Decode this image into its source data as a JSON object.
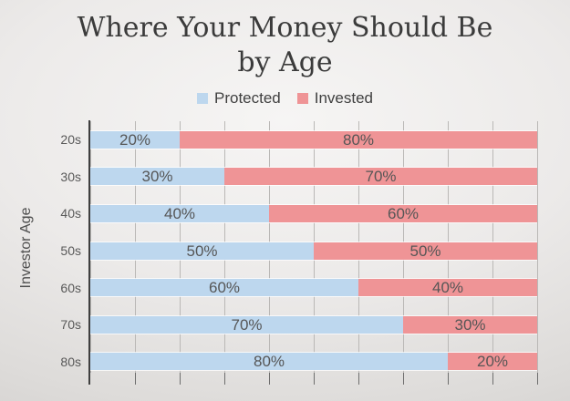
{
  "title": {
    "text": "Where Your Money Should Be by Age",
    "line1": "Where Your Money Should Be",
    "line2": "by Age"
  },
  "legend": [
    {
      "label": "Protected",
      "color": "#bdd7ee"
    },
    {
      "label": "Invested",
      "color": "#ef9496"
    }
  ],
  "y_axis_title": "Investor Age",
  "colors": {
    "protected_blue": "#bdd7ee",
    "invested_red": "#ef9496",
    "axis_line": "#3f3f3f",
    "gridline": "#bab8b6",
    "tick": "#6e6e6e",
    "label_text": "#565656"
  },
  "chart_data": {
    "type": "bar",
    "orientation": "horizontal",
    "stacked": true,
    "title": "Where Your Money Should Be by Age",
    "ylabel": "Investor Age",
    "xlabel": "",
    "categories": [
      "20s",
      "30s",
      "40s",
      "50s",
      "60s",
      "70s",
      "80s"
    ],
    "series": [
      {
        "name": "Protected",
        "color": "#bdd7ee",
        "values": [
          20,
          30,
          40,
          50,
          60,
          70,
          80
        ]
      },
      {
        "name": "Invested",
        "color": "#ef9496",
        "values": [
          80,
          70,
          60,
          50,
          40,
          30,
          20
        ]
      }
    ],
    "value_unit": "%",
    "data_labels": "center",
    "xlim": [
      0,
      100
    ],
    "gridline_step_percent": 10,
    "grid": true,
    "legend_position": "top"
  }
}
